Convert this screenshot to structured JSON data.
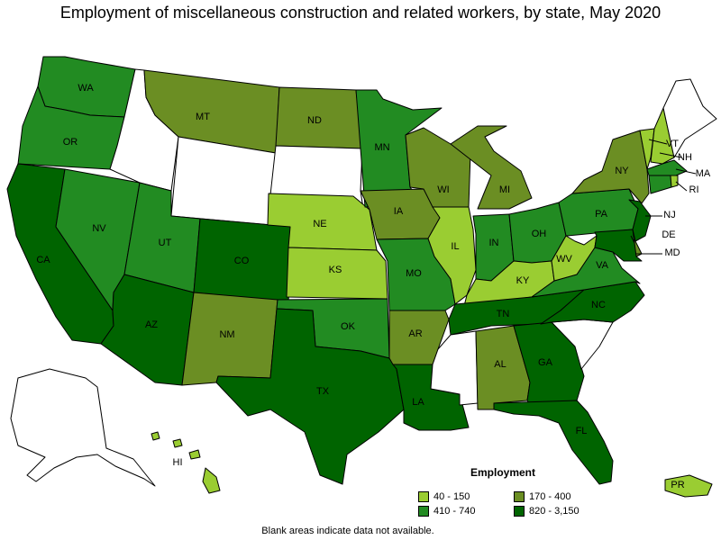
{
  "title": "Employment of miscellaneous construction and related workers, by state, May 2020",
  "legend": {
    "title": "Employment",
    "items": [
      {
        "label": "40 - 150",
        "color": "#9acd32"
      },
      {
        "label": "170 - 400",
        "color": "#6b8e23"
      },
      {
        "label": "410 - 740",
        "color": "#228b22"
      },
      {
        "label": "820 - 3,150",
        "color": "#006400"
      }
    ]
  },
  "no_data_color": "#ffffff",
  "note": "Blank areas indicate data not available.",
  "states": {
    "WA": {
      "label": "WA",
      "bin": 2
    },
    "OR": {
      "label": "OR",
      "bin": 2
    },
    "CA": {
      "label": "CA",
      "bin": 3
    },
    "NV": {
      "label": "NV",
      "bin": 2
    },
    "ID": {
      "label": "",
      "bin": null
    },
    "MT": {
      "label": "MT",
      "bin": 1
    },
    "WY": {
      "label": "",
      "bin": null
    },
    "UT": {
      "label": "UT",
      "bin": 2
    },
    "AZ": {
      "label": "AZ",
      "bin": 3
    },
    "CO": {
      "label": "CO",
      "bin": 3
    },
    "NM": {
      "label": "NM",
      "bin": 1
    },
    "ND": {
      "label": "ND",
      "bin": 1
    },
    "SD": {
      "label": "",
      "bin": null
    },
    "NE": {
      "label": "NE",
      "bin": 0
    },
    "KS": {
      "label": "KS",
      "bin": 0
    },
    "OK": {
      "label": "OK",
      "bin": 2
    },
    "TX": {
      "label": "TX",
      "bin": 3
    },
    "MN": {
      "label": "MN",
      "bin": 2
    },
    "IA": {
      "label": "IA",
      "bin": 1
    },
    "MO": {
      "label": "MO",
      "bin": 2
    },
    "AR": {
      "label": "AR",
      "bin": 1
    },
    "LA": {
      "label": "LA",
      "bin": 3
    },
    "WI": {
      "label": "WI",
      "bin": 1
    },
    "IL": {
      "label": "IL",
      "bin": 0
    },
    "MI": {
      "label": "MI",
      "bin": 1
    },
    "IN": {
      "label": "IN",
      "bin": 2
    },
    "OH": {
      "label": "OH",
      "bin": 2
    },
    "KY": {
      "label": "KY",
      "bin": 0
    },
    "TN": {
      "label": "TN",
      "bin": 3
    },
    "MS": {
      "label": "",
      "bin": null
    },
    "AL": {
      "label": "AL",
      "bin": 1
    },
    "GA": {
      "label": "GA",
      "bin": 3
    },
    "FL": {
      "label": "FL",
      "bin": 3
    },
    "SC": {
      "label": "",
      "bin": null
    },
    "NC": {
      "label": "NC",
      "bin": 3
    },
    "VA": {
      "label": "VA",
      "bin": 2
    },
    "WV": {
      "label": "WV",
      "bin": 0
    },
    "PA": {
      "label": "PA",
      "bin": 2
    },
    "NY": {
      "label": "NY",
      "bin": 1
    },
    "VT": {
      "label": "VT",
      "bin": 0
    },
    "NH": {
      "label": "NH",
      "bin": 0
    },
    "ME": {
      "label": "",
      "bin": null
    },
    "MA": {
      "label": "MA",
      "bin": 2
    },
    "RI": {
      "label": "RI",
      "bin": 0
    },
    "CT": {
      "label": "",
      "bin": 2
    },
    "NJ": {
      "label": "NJ",
      "bin": 3
    },
    "DE": {
      "label": "DE",
      "bin": 1
    },
    "MD": {
      "label": "MD",
      "bin": 3
    },
    "AK": {
      "label": "",
      "bin": null
    },
    "HI": {
      "label": "HI",
      "bin": 0
    },
    "PR": {
      "label": "PR",
      "bin": 0
    }
  }
}
